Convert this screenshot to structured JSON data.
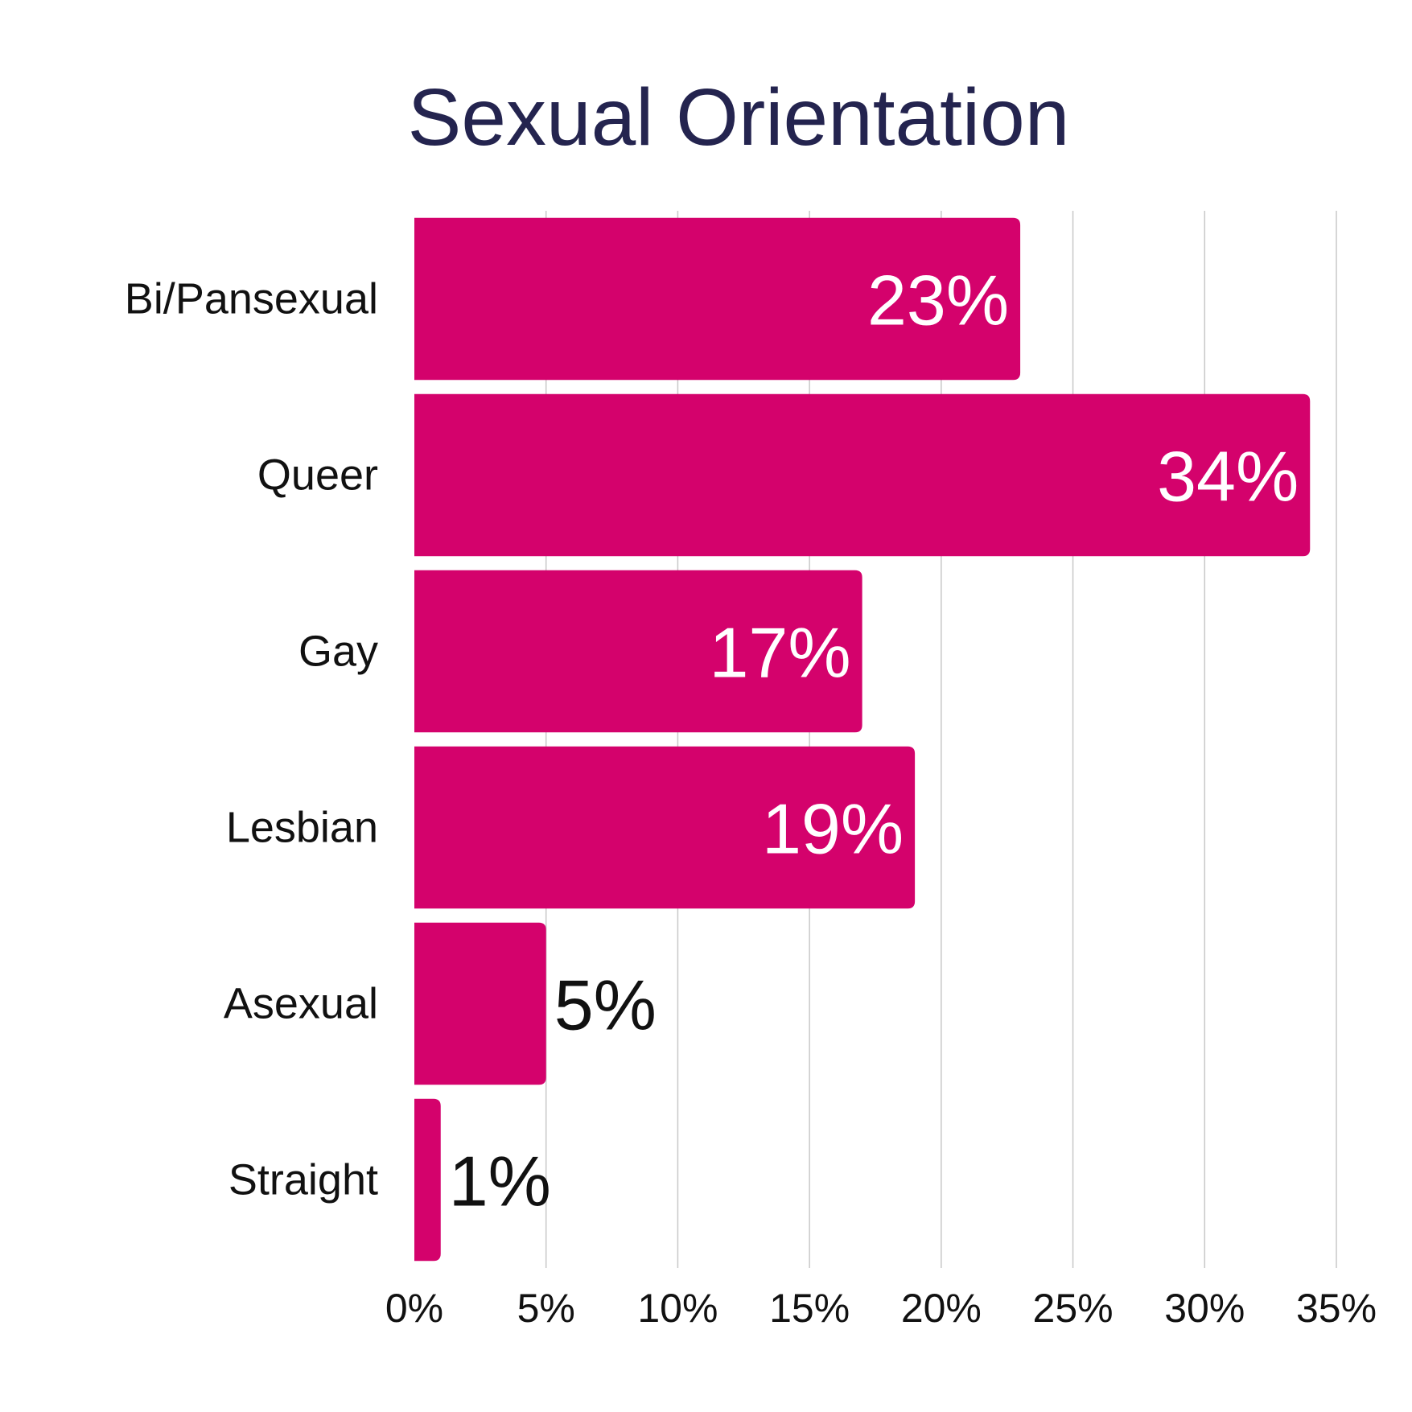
{
  "chart_data": {
    "type": "bar",
    "orientation": "horizontal",
    "title": "Sexual Orientation",
    "categories": [
      "Bi/Pansexual",
      "Queer",
      "Gay",
      "Lesbian",
      "Asexual",
      "Straight"
    ],
    "values": [
      23,
      34,
      17,
      19,
      5,
      1
    ],
    "value_labels": [
      "23%",
      "34%",
      "17%",
      "19%",
      "5%",
      "1%"
    ],
    "xlim": [
      0,
      35
    ],
    "x_ticks": [
      0,
      5,
      10,
      15,
      20,
      25,
      30,
      35
    ],
    "x_tick_labels": [
      "0%",
      "5%",
      "10%",
      "15%",
      "20%",
      "25%",
      "30%",
      "35%"
    ],
    "xlabel": "",
    "ylabel": "",
    "grid": "vertical",
    "legend": "none",
    "colors": {
      "bar": "#d4026c",
      "title": "#24244f",
      "label_inside": "#ffffff",
      "label_outside": "#111111",
      "grid": "#c8c8c8"
    }
  }
}
